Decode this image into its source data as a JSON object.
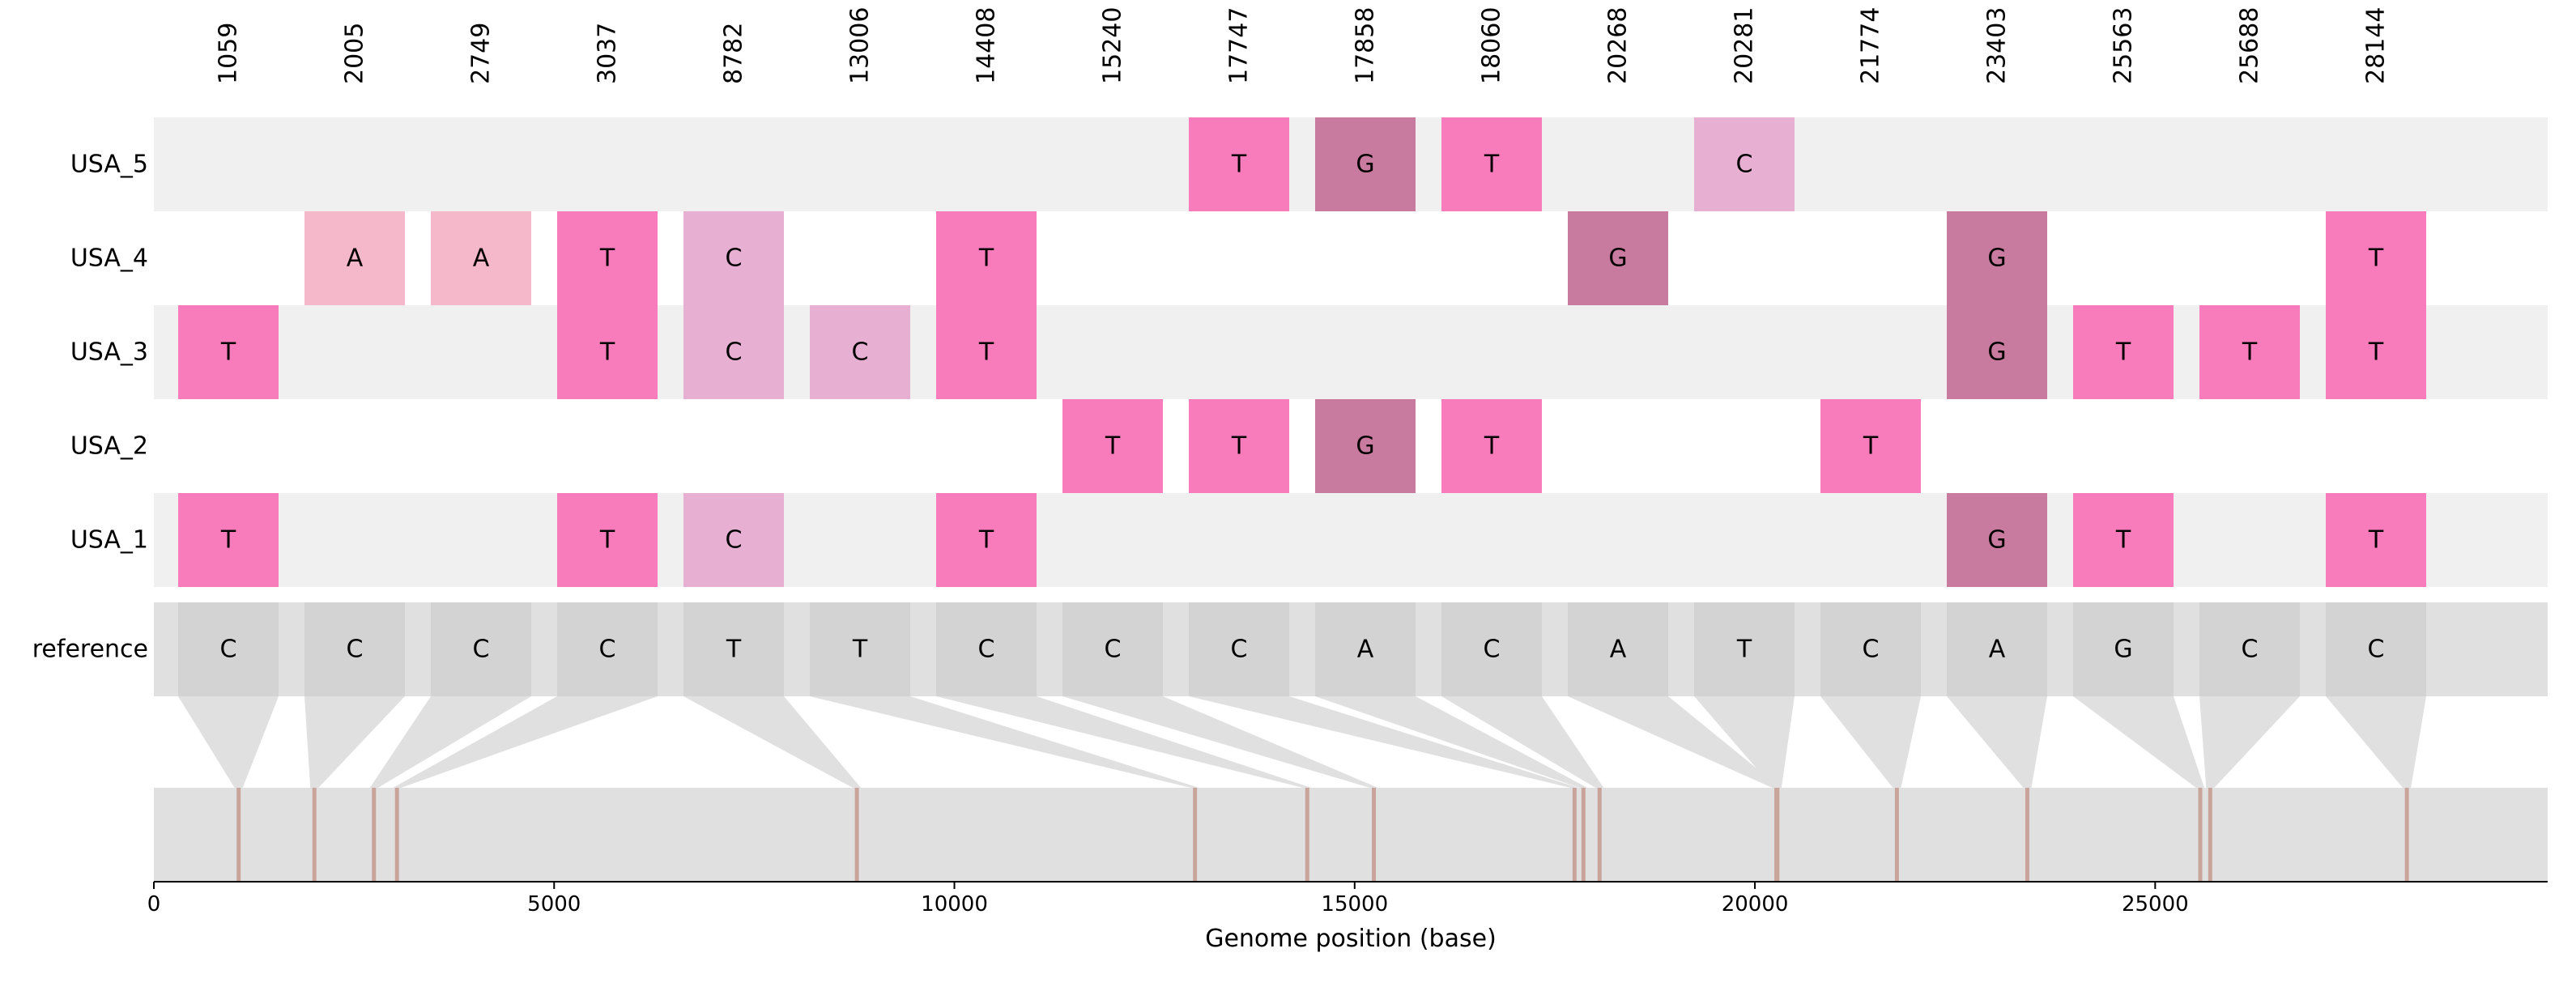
{
  "chart_data": {
    "type": "heatmap",
    "xlabel": "Genome position (base)",
    "xlim": [
      0,
      29903
    ],
    "xticks": [
      0,
      5000,
      10000,
      15000,
      20000,
      25000
    ],
    "positions": [
      1059,
      2005,
      2749,
      3037,
      8782,
      13006,
      14408,
      15240,
      17747,
      17858,
      18060,
      20268,
      20281,
      21774,
      23403,
      25563,
      25688,
      28144
    ],
    "reference": {
      "label": "reference",
      "bases": [
        "C",
        "C",
        "C",
        "C",
        "T",
        "T",
        "C",
        "C",
        "C",
        "A",
        "C",
        "A",
        "T",
        "C",
        "A",
        "G",
        "C",
        "C"
      ]
    },
    "samples": [
      {
        "label": "USA_5",
        "bases": [
          "",
          "",
          "",
          "",
          "",
          "",
          "",
          "",
          "T",
          "G",
          "T",
          "",
          "C",
          "",
          "",
          "",
          "",
          ""
        ]
      },
      {
        "label": "USA_4",
        "bases": [
          "",
          "A",
          "A",
          "T",
          "C",
          "",
          "T",
          "",
          "",
          "",
          "",
          "G",
          "",
          "",
          "G",
          "",
          "",
          "T"
        ]
      },
      {
        "label": "USA_3",
        "bases": [
          "T",
          "",
          "",
          "T",
          "C",
          "C",
          "T",
          "",
          "",
          "",
          "",
          "",
          "",
          "",
          "G",
          "T",
          "T",
          "T"
        ]
      },
      {
        "label": "USA_2",
        "bases": [
          "",
          "",
          "",
          "",
          "",
          "",
          "",
          "T",
          "T",
          "G",
          "T",
          "",
          "",
          "T",
          "",
          "",
          "",
          ""
        ]
      },
      {
        "label": "USA_1",
        "bases": [
          "T",
          "",
          "",
          "T",
          "C",
          "",
          "T",
          "",
          "",
          "",
          "",
          "",
          "",
          "",
          "G",
          "T",
          "",
          "T"
        ]
      }
    ],
    "base_colors": {
      "T": "#f87bbb",
      "G": "#c87a9f",
      "C": "#e7afd2",
      "A": "#f5b8cb"
    },
    "colors": {
      "row_band": "#f0f0f0",
      "reference_band": "#e0e0e0",
      "reference_cell": "#d3d3d3",
      "connector": "#e0e0e0",
      "genome_bar": "#e0e0e0",
      "marker": "#c8a49b"
    }
  }
}
